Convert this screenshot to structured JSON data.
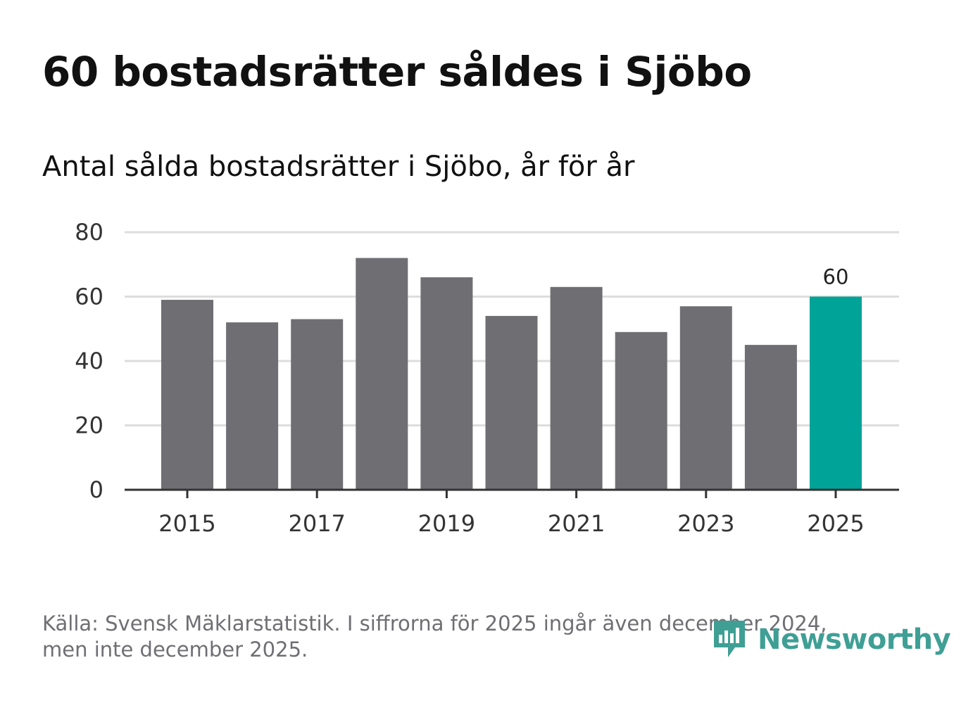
{
  "header": {
    "title": "60 bostadsrätter såldes i Sjöbo",
    "subtitle": "Antal sålda bostadsrätter i Sjöbo, år för år"
  },
  "footer": {
    "source_line1": "Källa: Svensk Mäklarstatistik. I siffrorna för 2025 ingår även december 2024,",
    "source_line2": "men inte december 2025.",
    "brand_name": "Newsworthy",
    "brand_icon": "chart-bubble-icon"
  },
  "colors": {
    "bar": "#6f6e73",
    "highlight": "#00a398",
    "grid": "#dddddd",
    "axis": "#333333",
    "brand": "#3f9f95"
  },
  "chart_data": {
    "type": "bar",
    "title": "Antal sålda bostadsrätter i Sjöbo, år för år",
    "xlabel": "",
    "ylabel": "",
    "categories": [
      "2015",
      "2016",
      "2017",
      "2018",
      "2019",
      "2020",
      "2021",
      "2022",
      "2023",
      "2024",
      "2025"
    ],
    "values": [
      59,
      52,
      53,
      72,
      66,
      54,
      63,
      49,
      57,
      45,
      60
    ],
    "x_tick_labels": [
      "2015",
      "2017",
      "2019",
      "2021",
      "2023",
      "2025"
    ],
    "y_ticks": [
      0,
      20,
      40,
      60,
      80
    ],
    "ylim": [
      0,
      80
    ],
    "grid": true,
    "highlight_category": "2025",
    "data_labels": [
      {
        "category": "2025",
        "text": "60"
      }
    ]
  }
}
